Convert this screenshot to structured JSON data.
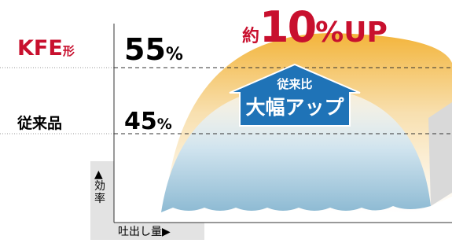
{
  "headline": {
    "prefix": "約",
    "number": "10",
    "suffix": "%UP"
  },
  "rows": [
    {
      "label": "KFE",
      "label_suffix": "形",
      "value": "55",
      "unit": "%"
    },
    {
      "label": "従来品",
      "value": "45",
      "unit": "%"
    }
  ],
  "arrow": {
    "line1": "従来比",
    "line2": "大幅アップ"
  },
  "axes": {
    "y": "▲効率",
    "x": "吐出し量▶"
  }
}
